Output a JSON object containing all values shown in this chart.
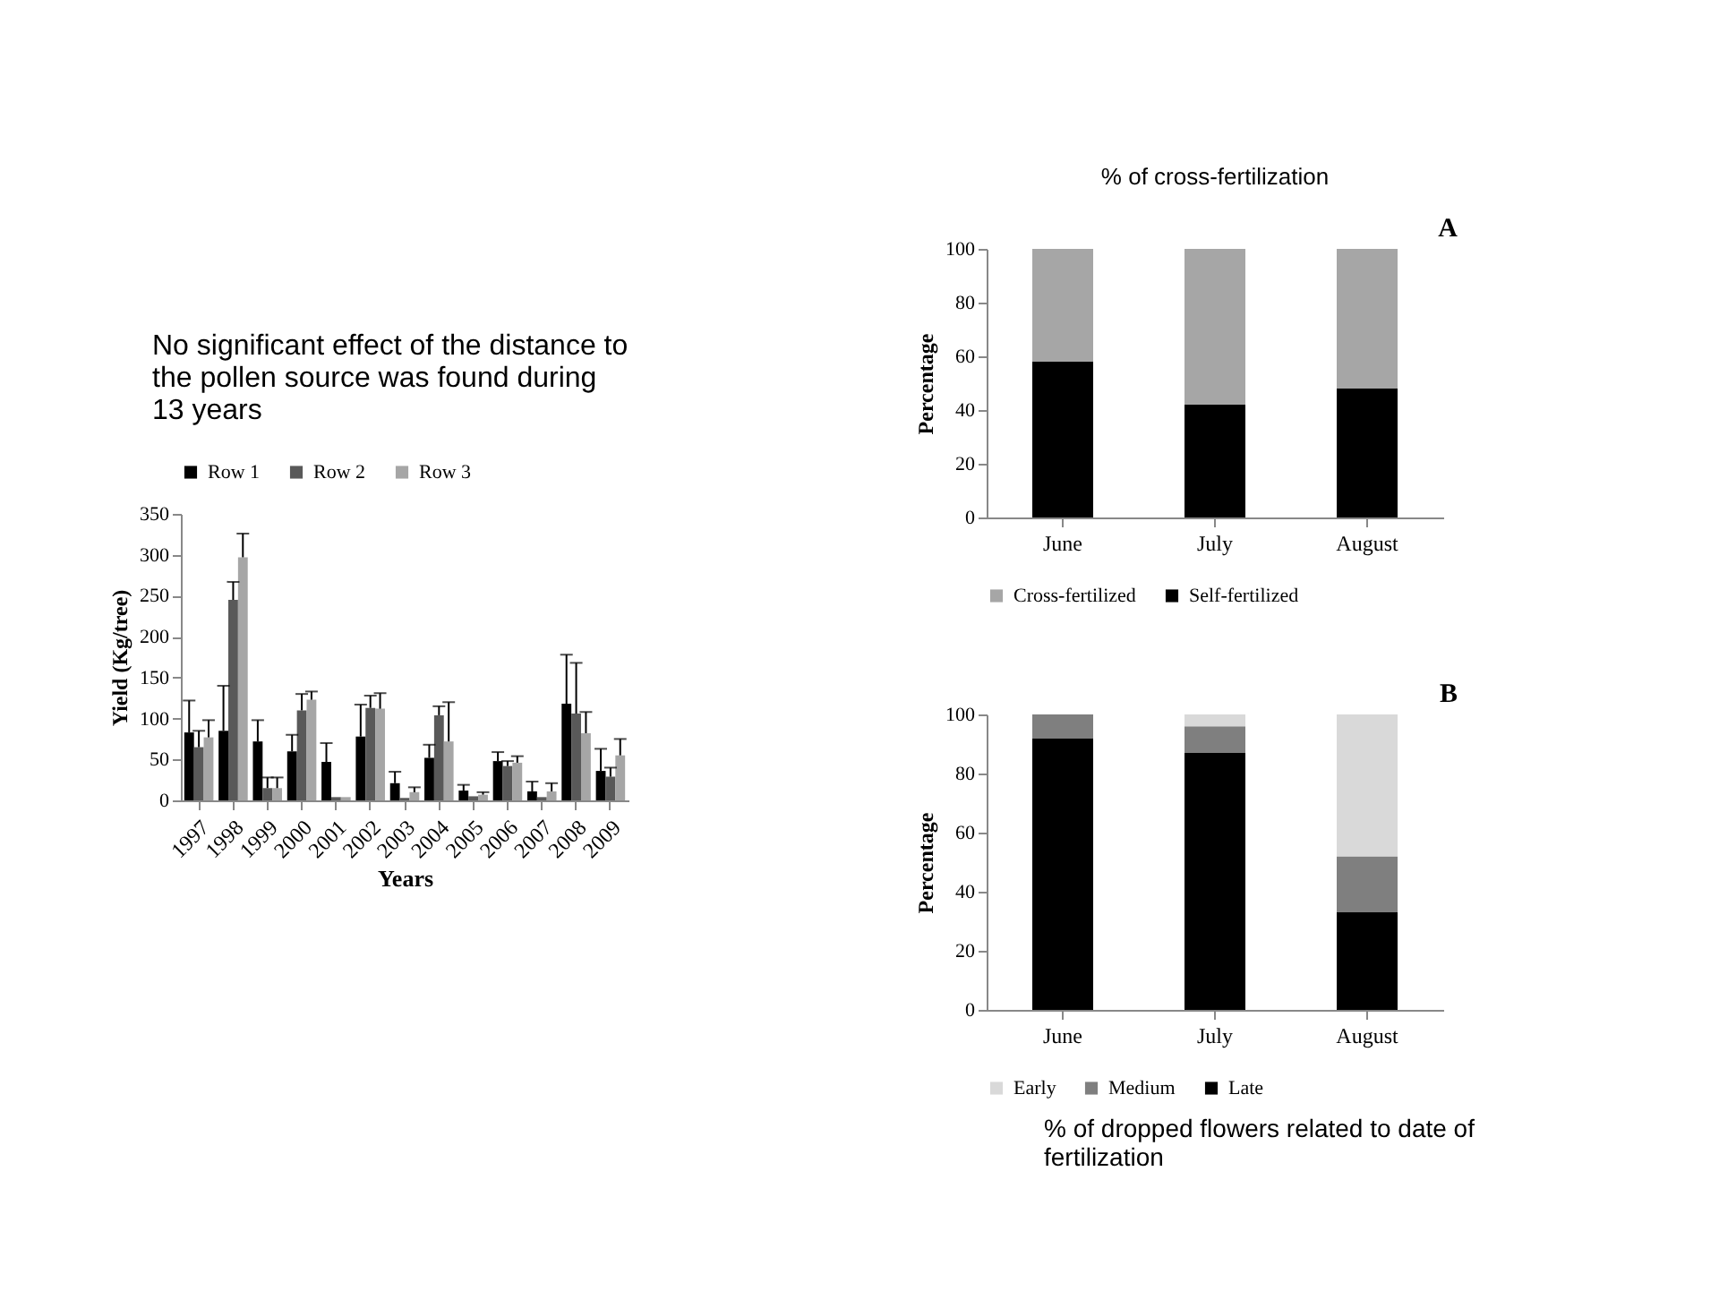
{
  "chart_data": [
    {
      "type": "bar",
      "title": "No significant effect of the distance to the pollen source was found during 13 years",
      "xlabel": "Years",
      "ylabel": "Yield  (Kg/tree)",
      "categories": [
        "1997",
        "1998",
        "1999",
        "2000",
        "2001",
        "2002",
        "2003",
        "2004",
        "2005",
        "2006",
        "2007",
        "2008",
        "2009"
      ],
      "series": [
        {
          "name": "Row 1",
          "color": "#000000",
          "values": [
            83,
            85,
            72,
            60,
            47,
            78,
            21,
            52,
            12,
            48,
            11,
            118,
            36
          ],
          "errors": [
            [
              83,
              122
            ],
            [
              85,
              140
            ],
            [
              72,
              98
            ],
            [
              60,
              80
            ],
            [
              47,
              70
            ],
            [
              78,
              117
            ],
            [
              21,
              35
            ],
            [
              52,
              68
            ],
            [
              12,
              19
            ],
            [
              48,
              59
            ],
            [
              11,
              23
            ],
            [
              118,
              178
            ],
            [
              36,
              63
            ]
          ]
        },
        {
          "name": "Row 2",
          "color": "#595959",
          "values": [
            65,
            245,
            15,
            110,
            4,
            113,
            3,
            104,
            5,
            42,
            4,
            106,
            29
          ],
          "errors": [
            [
              65,
              85
            ],
            [
              245,
              267
            ],
            [
              15,
              28
            ],
            [
              110,
              130
            ],
            null,
            [
              113,
              128
            ],
            null,
            [
              104,
              115
            ],
            null,
            [
              42,
              48
            ],
            null,
            [
              106,
              168
            ],
            [
              29,
              40
            ]
          ]
        },
        {
          "name": "Row 3",
          "color": "#a6a6a6",
          "values": [
            77,
            297,
            15,
            123,
            4,
            112,
            10,
            72,
            7,
            46,
            11,
            82,
            55
          ],
          "errors": [
            [
              77,
              98
            ],
            [
              297,
              326
            ],
            [
              15,
              28
            ],
            [
              123,
              133
            ],
            null,
            [
              112,
              131
            ],
            [
              10,
              16
            ],
            [
              72,
              120
            ],
            [
              7,
              10
            ],
            [
              46,
              54
            ],
            [
              11,
              21
            ],
            [
              82,
              108
            ],
            [
              55,
              75
            ]
          ]
        }
      ],
      "ylim": [
        0,
        350
      ],
      "yticks": [
        0,
        50,
        100,
        150,
        200,
        250,
        300,
        350
      ],
      "legend": "top",
      "grid": false
    },
    {
      "type": "bar",
      "title": "% of cross-fertilization",
      "ylabel": "Percentage",
      "stacked": true,
      "categories": [
        "June",
        "July",
        "August"
      ],
      "series": [
        {
          "name": "Self-fertilized",
          "color": "#000000",
          "values": [
            58,
            42,
            48
          ]
        },
        {
          "name": "Cross-fertilized",
          "color": "#a6a6a6",
          "values": [
            42,
            58,
            52
          ]
        }
      ],
      "ylim": [
        0,
        100
      ],
      "yticks": [
        0,
        20,
        40,
        60,
        80,
        100
      ],
      "legend": "bottom",
      "grid": false,
      "annotations": [
        "A"
      ]
    },
    {
      "type": "bar",
      "ylabel": "Percentage",
      "stacked": true,
      "categories": [
        "June",
        "July",
        "August"
      ],
      "series": [
        {
          "name": "Late",
          "color": "#000000",
          "values": [
            92,
            87,
            33
          ]
        },
        {
          "name": "Medium",
          "color": "#7f7f7f",
          "values": [
            8,
            9,
            19
          ]
        },
        {
          "name": "Early",
          "color": "#d9d9d9",
          "values": [
            0,
            4,
            48
          ]
        }
      ],
      "ylim": [
        0,
        100
      ],
      "yticks": [
        0,
        20,
        40,
        60,
        80,
        100
      ],
      "legend": "bottom",
      "grid": false,
      "annotations": [
        "B",
        "% of dropped flowers related to date of fertilization"
      ]
    }
  ]
}
